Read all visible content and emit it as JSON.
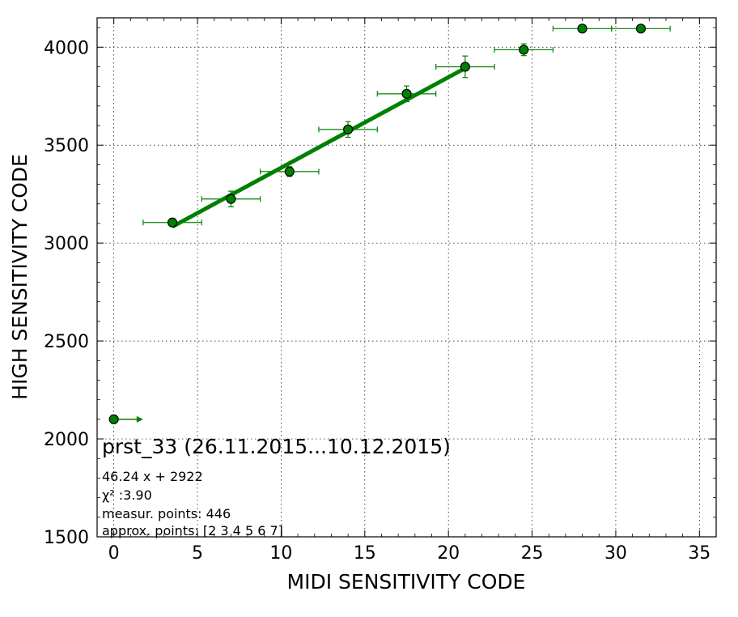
{
  "chart_data": {
    "type": "scatter",
    "title": "prst_33 (26.11.2015...10.12.2015)",
    "xlabel": "MIDI SENSITIVITY CODE",
    "ylabel": "HIGH SENSITIVITY CODE",
    "xlim": [
      -1,
      36
    ],
    "ylim": [
      1500,
      4150
    ],
    "xticks": [
      0,
      5,
      10,
      15,
      20,
      25,
      30,
      35
    ],
    "yticks": [
      1500,
      2000,
      2500,
      3000,
      3500,
      4000
    ],
    "grid": true,
    "colors": {
      "series": "#008000",
      "marker": "#008000",
      "marker_edge": "#000000"
    },
    "points": [
      {
        "x": 0,
        "y": 2100,
        "xerr": 0,
        "yerr": 20
      },
      {
        "x": 3.5,
        "y": 3105,
        "xerr": 1.75,
        "yerr": 20
      },
      {
        "x": 7,
        "y": 3225,
        "xerr": 1.75,
        "yerr": 40
      },
      {
        "x": 10.5,
        "y": 3365,
        "xerr": 1.75,
        "yerr": 25
      },
      {
        "x": 14,
        "y": 3580,
        "xerr": 1.75,
        "yerr": 40
      },
      {
        "x": 17.5,
        "y": 3762,
        "xerr": 1.75,
        "yerr": 40
      },
      {
        "x": 21,
        "y": 3900,
        "xerr": 1.75,
        "yerr": 55
      },
      {
        "x": 24.5,
        "y": 3987,
        "xerr": 1.75,
        "yerr": 30
      },
      {
        "x": 28,
        "y": 4095,
        "xerr": 1.75,
        "yerr": 0
      },
      {
        "x": 31.5,
        "y": 4095,
        "xerr": 1.75,
        "yerr": 0
      }
    ],
    "fit": {
      "slope": 46.24,
      "intercept": 2922,
      "x_range": [
        3.5,
        21
      ]
    },
    "annotations": [
      "46.24 x + 2922",
      "χ² :3.90",
      "measur. points: 446",
      "approx. points: [2 3 4 5 6 7]"
    ]
  }
}
